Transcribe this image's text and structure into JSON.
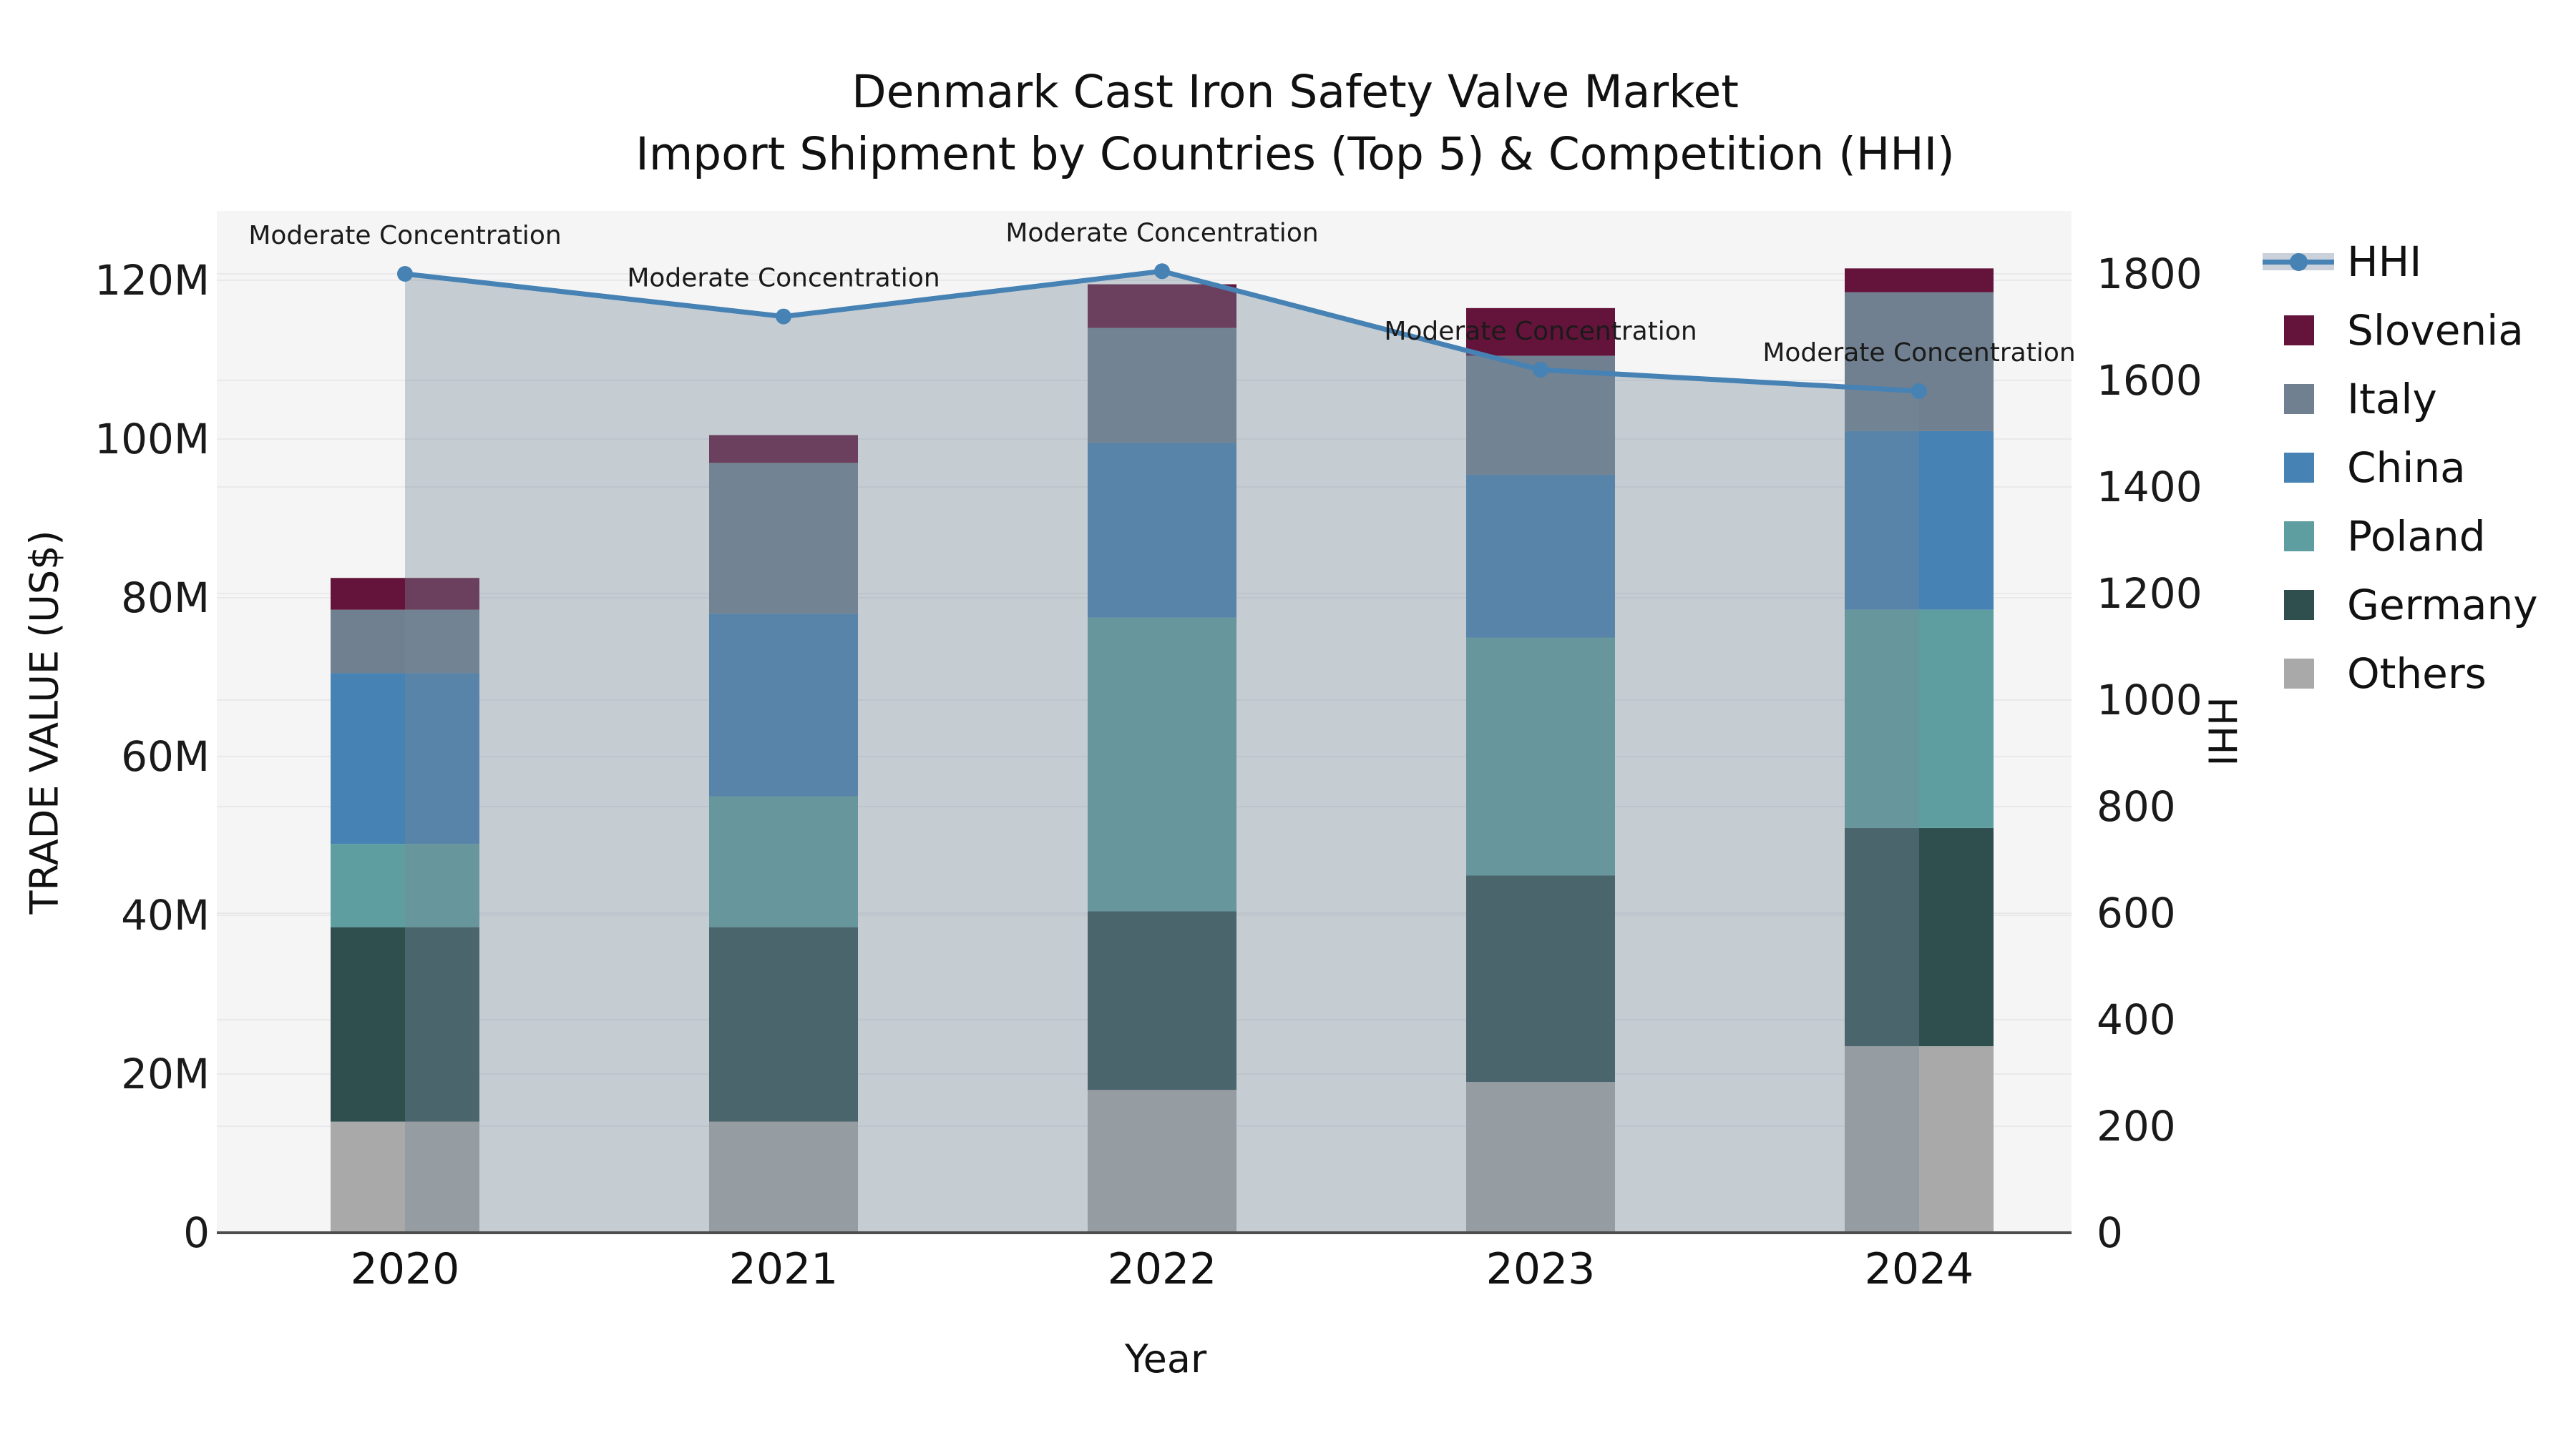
{
  "title": {
    "line1": "Denmark Cast Iron Safety Valve Market",
    "line2": "Import Shipment by Countries (Top 5) & Competition (HHI)"
  },
  "axes": {
    "left_label": "TRADE VALUE (US$)",
    "right_label": "HHI",
    "x_label": "Year"
  },
  "legend": {
    "items": [
      {
        "label": "HHI",
        "type": "line",
        "color": "#4682B4"
      },
      {
        "label": "Slovenia",
        "type": "box",
        "color": "#64143A"
      },
      {
        "label": "Italy",
        "type": "box",
        "color": "#708090"
      },
      {
        "label": "China",
        "type": "box",
        "color": "#4682B4"
      },
      {
        "label": "Poland",
        "type": "box",
        "color": "#5F9EA0"
      },
      {
        "label": "Germany",
        "type": "box",
        "color": "#2F4F4F"
      },
      {
        "label": "Others",
        "type": "box",
        "color": "#A9A9A9"
      }
    ]
  },
  "chart_data": {
    "type": "bar",
    "subtype": "stacked-bar-with-line-overlay",
    "title": "Denmark Cast Iron Safety Valve Market - Import Shipment by Countries (Top 5) & Competition (HHI)",
    "categories": [
      "2020",
      "2021",
      "2022",
      "2023",
      "2024"
    ],
    "xlabel": "Year",
    "ylabel_left": "TRADE VALUE (US$)",
    "ylabel_right": "HHI",
    "unit": "US$ millions (left axis), HHI index points (right axis)",
    "grid": true,
    "legend_position": "right",
    "plot_background": "#F5F5F5",
    "series": [
      {
        "name": "Others",
        "color": "#A9A9A9",
        "values": [
          14.0,
          14.0,
          18.0,
          19.0,
          23.5
        ]
      },
      {
        "name": "Germany",
        "color": "#2F4F4F",
        "values": [
          24.5,
          24.5,
          22.5,
          26.0,
          27.5
        ]
      },
      {
        "name": "Poland",
        "color": "#5F9EA0",
        "values": [
          10.5,
          16.5,
          37.0,
          30.0,
          27.5
        ]
      },
      {
        "name": "China",
        "color": "#4682B4",
        "values": [
          21.5,
          23.0,
          22.0,
          20.5,
          22.5
        ]
      },
      {
        "name": "Italy",
        "color": "#708090",
        "values": [
          8.0,
          19.0,
          14.5,
          15.0,
          17.5
        ]
      },
      {
        "name": "Slovenia",
        "color": "#64143A",
        "values": [
          4.0,
          3.5,
          5.5,
          6.0,
          3.0
        ]
      }
    ],
    "bar_totals": [
      82.5,
      100.5,
      119.5,
      116.5,
      121.5
    ],
    "line_series": {
      "name": "HHI",
      "color": "#4682B4",
      "area_fill": "rgba(119,136,153,0.38)",
      "values": [
        1800,
        1720,
        1805,
        1620,
        1580
      ]
    },
    "point_annotations": [
      "Moderate Concentration",
      "Moderate Concentration",
      "Moderate Concentration",
      "Moderate Concentration",
      "Moderate Concentration"
    ],
    "left_axis": {
      "ticks": [
        {
          "label": "0",
          "value": 0
        },
        {
          "label": "20M",
          "value": 20
        },
        {
          "label": "40M",
          "value": 40
        },
        {
          "label": "60M",
          "value": 60
        },
        {
          "label": "80M",
          "value": 80
        },
        {
          "label": "100M",
          "value": 100
        },
        {
          "label": "120M",
          "value": 120
        }
      ],
      "range": [
        0,
        128.7
      ]
    },
    "right_axis": {
      "ticks": [
        {
          "label": "0",
          "value": 0
        },
        {
          "label": "200",
          "value": 200
        },
        {
          "label": "400",
          "value": 400
        },
        {
          "label": "600",
          "value": 600
        },
        {
          "label": "800",
          "value": 800
        },
        {
          "label": "1000",
          "value": 1000
        },
        {
          "label": "1200",
          "value": 1200
        },
        {
          "label": "1400",
          "value": 1400
        },
        {
          "label": "1600",
          "value": 1600
        },
        {
          "label": "1800",
          "value": 1800
        }
      ],
      "range": [
        0,
        1918
      ]
    }
  }
}
